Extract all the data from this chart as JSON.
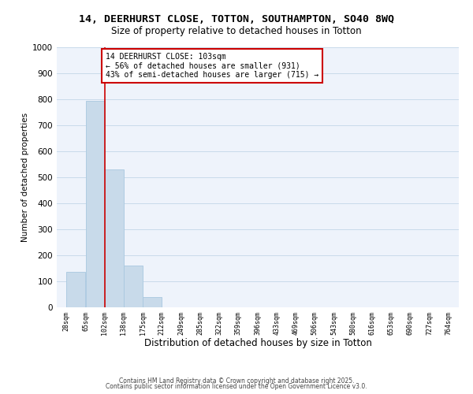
{
  "title": "14, DEERHURST CLOSE, TOTTON, SOUTHAMPTON, SO40 8WQ",
  "subtitle": "Size of property relative to detached houses in Totton",
  "xlabel": "Distribution of detached houses by size in Totton",
  "ylabel": "Number of detached properties",
  "bar_edges": [
    28,
    65,
    102,
    138,
    175,
    212,
    249,
    285,
    322,
    359,
    396,
    433,
    469,
    506,
    543,
    580,
    616,
    653,
    690,
    727,
    764
  ],
  "bar_heights": [
    135,
    795,
    530,
    160,
    40,
    0,
    0,
    0,
    0,
    0,
    0,
    0,
    0,
    0,
    0,
    0,
    0,
    0,
    0,
    0
  ],
  "bar_color": "#c8daea",
  "bar_edge_color": "#a8c8e0",
  "vline_x": 102,
  "vline_color": "#cc0000",
  "ylim": [
    0,
    1000
  ],
  "yticks": [
    0,
    100,
    200,
    300,
    400,
    500,
    600,
    700,
    800,
    900,
    1000
  ],
  "annotation_text": "14 DEERHURST CLOSE: 103sqm\n← 56% of detached houses are smaller (931)\n43% of semi-detached houses are larger (715) →",
  "annotation_box_color": "#ffffff",
  "annotation_border_color": "#cc0000",
  "grid_color": "#c8daea",
  "bg_color": "#eef3fb",
  "footnote_line1": "Contains HM Land Registry data © Crown copyright and database right 2025.",
  "footnote_line2": "Contains public sector information licensed under the Open Government Licence v3.0.",
  "tick_labels": [
    "28sqm",
    "65sqm",
    "102sqm",
    "138sqm",
    "175sqm",
    "212sqm",
    "249sqm",
    "285sqm",
    "322sqm",
    "359sqm",
    "396sqm",
    "433sqm",
    "469sqm",
    "506sqm",
    "543sqm",
    "580sqm",
    "616sqm",
    "653sqm",
    "690sqm",
    "727sqm",
    "764sqm"
  ]
}
